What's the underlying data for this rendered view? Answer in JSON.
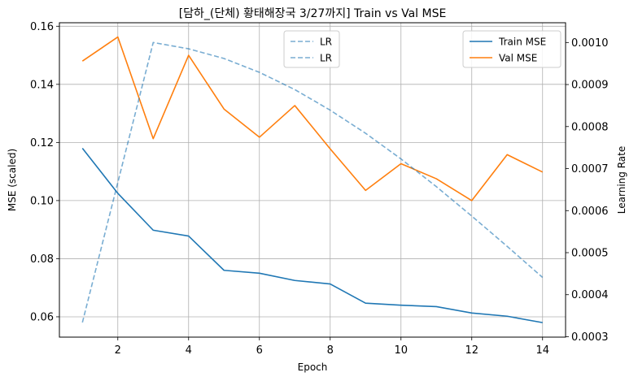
{
  "chart_data": {
    "type": "line",
    "title": "[담하_(단체) 황태해장국 3/27까지] Train vs Val MSE",
    "xlabel": "Epoch",
    "ylabel": "MSE (scaled)",
    "y2label": "Learning Rate",
    "x": [
      1,
      2,
      3,
      4,
      5,
      6,
      7,
      8,
      9,
      10,
      11,
      12,
      13,
      14
    ],
    "xticks": [
      2,
      4,
      6,
      8,
      10,
      12,
      14
    ],
    "xticklabels": [
      "2",
      "4",
      "6",
      "8",
      "10",
      "12",
      "14"
    ],
    "xlim": [
      0.35,
      14.65
    ],
    "ylim": [
      0.053,
      0.1612
    ],
    "yticks": [
      0.06,
      0.08,
      0.1,
      0.12,
      0.14,
      0.16
    ],
    "yticklabels": [
      "0.06",
      "0.08",
      "0.10",
      "0.12",
      "0.14",
      "0.16"
    ],
    "y2lim": [
      0.000299,
      0.001047
    ],
    "y2ticks": [
      0.0003,
      0.0004,
      0.0005,
      0.0006,
      0.0007,
      0.0008,
      0.0009,
      0.001
    ],
    "y2ticklabels": [
      "0.0003",
      "0.0004",
      "0.0005",
      "0.0006",
      "0.0007",
      "0.0008",
      "0.0009",
      "0.0010"
    ],
    "grid": true,
    "series": [
      {
        "name": "Train MSE",
        "axis": "left",
        "color": "#1f77b4",
        "style": "solid",
        "values": [
          0.118,
          0.1025,
          0.0898,
          0.0878,
          0.076,
          0.075,
          0.0725,
          0.0713,
          0.0647,
          0.064,
          0.0635,
          0.0613,
          0.0602,
          0.058
        ]
      },
      {
        "name": "Val MSE",
        "axis": "left",
        "color": "#ff7f0e",
        "style": "solid",
        "values": [
          0.148,
          0.1563,
          0.1213,
          0.15,
          0.1315,
          0.1218,
          0.1327,
          0.1178,
          0.1035,
          0.1127,
          0.1075,
          0.1,
          0.1158,
          0.1098
        ]
      },
      {
        "name": "LR",
        "axis": "right",
        "color": "#1f77b4",
        "opacity": 0.6,
        "style": "dashed",
        "values": [
          0.000334,
          0.000667,
          0.001,
          0.000985,
          0.000962,
          0.000929,
          0.000888,
          0.000839,
          0.000784,
          0.000723,
          0.000657,
          0.000587,
          0.000515,
          0.000441
        ]
      }
    ],
    "legends": [
      {
        "placement": "top-center",
        "entries": [
          "LR",
          "LR"
        ]
      },
      {
        "placement": "top-right",
        "entries": [
          "Train MSE",
          "Val MSE"
        ]
      }
    ]
  }
}
